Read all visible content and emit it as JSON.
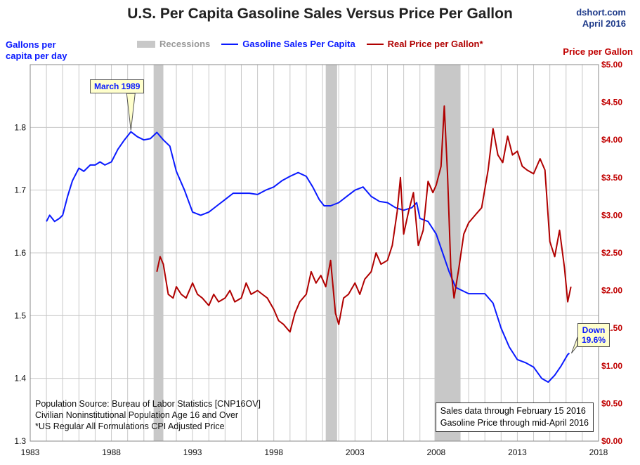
{
  "header": {
    "title": "U.S. Per Capita Gasoline Sales Versus Price Per Gallon",
    "source_line1": "dshort.com",
    "source_line2": "April 2016",
    "left_axis_label_1": "Gallons per",
    "left_axis_label_2": "capita per day",
    "right_axis_label": "Price per Gallon"
  },
  "legend": {
    "recessions": "Recessions",
    "sales": "Gasoline Sales Per Capita",
    "price": "Real Price per Gallon*"
  },
  "notes": {
    "line1": "Population Source: Bureau of Labor Statistics [CNP16OV]",
    "line2": "Civilian Noninstitutional Population  Age 16 and Over",
    "line3": "*US Regular All Formulations CPI Adjusted Price",
    "box_line1": "Sales data through February 15 2016",
    "box_line2": "Gasoline Price through mid-April 2016"
  },
  "callouts": {
    "peak": "March 1989",
    "down_1": "Down",
    "down_2": "19.6%"
  },
  "colors": {
    "sales": "#0a1aff",
    "price": "#b00000",
    "recession": "#c8c8c8",
    "grid": "#c8c8c8"
  },
  "chart_data": {
    "type": "line",
    "title": "U.S. Per Capita Gasoline Sales Versus Price Per Gallon",
    "xlim": [
      1983,
      2018
    ],
    "x_ticks": [
      1983,
      1988,
      1993,
      1998,
      2003,
      2008,
      2013,
      2018
    ],
    "y_left": {
      "label": "Gallons per capita per day",
      "lim": [
        1.3,
        1.9
      ],
      "ticks": [
        1.3,
        1.4,
        1.5,
        1.6,
        1.7,
        1.8
      ]
    },
    "y_right": {
      "label": "Price per Gallon",
      "lim": [
        0,
        5
      ],
      "ticks": [
        "$0.00",
        "$0.50",
        "$1.00",
        "$1.50",
        "$2.00",
        "$2.50",
        "$3.00",
        "$3.50",
        "$4.00",
        "$4.50",
        "$5.00"
      ]
    },
    "grid": true,
    "recessions": [
      [
        1990.6,
        1991.2
      ],
      [
        2001.2,
        2001.9
      ],
      [
        2007.9,
        2009.5
      ]
    ],
    "series": [
      {
        "name": "Gasoline Sales Per Capita",
        "axis": "left",
        "points": [
          [
            1984.0,
            1.65
          ],
          [
            1984.2,
            1.66
          ],
          [
            1984.5,
            1.65
          ],
          [
            1984.8,
            1.655
          ],
          [
            1985.0,
            1.66
          ],
          [
            1985.3,
            1.69
          ],
          [
            1985.6,
            1.715
          ],
          [
            1986.0,
            1.735
          ],
          [
            1986.3,
            1.73
          ],
          [
            1986.7,
            1.74
          ],
          [
            1987.0,
            1.74
          ],
          [
            1987.3,
            1.745
          ],
          [
            1987.6,
            1.74
          ],
          [
            1988.0,
            1.745
          ],
          [
            1988.4,
            1.765
          ],
          [
            1988.8,
            1.78
          ],
          [
            1989.2,
            1.793
          ],
          [
            1989.6,
            1.785
          ],
          [
            1990.0,
            1.78
          ],
          [
            1990.4,
            1.782
          ],
          [
            1990.8,
            1.792
          ],
          [
            1991.2,
            1.78
          ],
          [
            1991.6,
            1.77
          ],
          [
            1992.0,
            1.73
          ],
          [
            1992.5,
            1.7
          ],
          [
            1993.0,
            1.665
          ],
          [
            1993.5,
            1.66
          ],
          [
            1994.0,
            1.665
          ],
          [
            1994.5,
            1.675
          ],
          [
            1995.0,
            1.685
          ],
          [
            1995.5,
            1.695
          ],
          [
            1996.0,
            1.695
          ],
          [
            1996.5,
            1.695
          ],
          [
            1997.0,
            1.693
          ],
          [
            1997.5,
            1.7
          ],
          [
            1998.0,
            1.705
          ],
          [
            1998.5,
            1.715
          ],
          [
            1999.0,
            1.722
          ],
          [
            1999.5,
            1.728
          ],
          [
            2000.0,
            1.722
          ],
          [
            2000.4,
            1.705
          ],
          [
            2000.8,
            1.685
          ],
          [
            2001.1,
            1.675
          ],
          [
            2001.5,
            1.675
          ],
          [
            2002.0,
            1.68
          ],
          [
            2002.5,
            1.69
          ],
          [
            2003.0,
            1.7
          ],
          [
            2003.5,
            1.705
          ],
          [
            2004.0,
            1.69
          ],
          [
            2004.5,
            1.682
          ],
          [
            2005.0,
            1.68
          ],
          [
            2005.5,
            1.672
          ],
          [
            2006.0,
            1.668
          ],
          [
            2006.5,
            1.672
          ],
          [
            2006.8,
            1.68
          ],
          [
            2007.0,
            1.655
          ],
          [
            2007.5,
            1.65
          ],
          [
            2008.0,
            1.63
          ],
          [
            2008.4,
            1.6
          ],
          [
            2008.8,
            1.57
          ],
          [
            2009.2,
            1.545
          ],
          [
            2009.6,
            1.54
          ],
          [
            2010.0,
            1.535
          ],
          [
            2010.5,
            1.535
          ],
          [
            2011.0,
            1.535
          ],
          [
            2011.5,
            1.52
          ],
          [
            2012.0,
            1.48
          ],
          [
            2012.5,
            1.45
          ],
          [
            2013.0,
            1.43
          ],
          [
            2013.5,
            1.425
          ],
          [
            2014.0,
            1.418
          ],
          [
            2014.5,
            1.4
          ],
          [
            2014.9,
            1.394
          ],
          [
            2015.3,
            1.405
          ],
          [
            2015.7,
            1.42
          ],
          [
            2016.1,
            1.438
          ],
          [
            2016.2,
            1.44
          ]
        ]
      },
      {
        "name": "Real Price per Gallon*",
        "axis": "right",
        "points": [
          [
            1990.8,
            2.25
          ],
          [
            1991.0,
            2.45
          ],
          [
            1991.2,
            2.35
          ],
          [
            1991.5,
            1.95
          ],
          [
            1991.8,
            1.9
          ],
          [
            1992.0,
            2.05
          ],
          [
            1992.3,
            1.95
          ],
          [
            1992.6,
            1.9
          ],
          [
            1993.0,
            2.1
          ],
          [
            1993.3,
            1.95
          ],
          [
            1993.6,
            1.9
          ],
          [
            1994.0,
            1.8
          ],
          [
            1994.3,
            1.95
          ],
          [
            1994.6,
            1.85
          ],
          [
            1995.0,
            1.9
          ],
          [
            1995.3,
            2.0
          ],
          [
            1995.6,
            1.85
          ],
          [
            1996.0,
            1.9
          ],
          [
            1996.3,
            2.1
          ],
          [
            1996.6,
            1.95
          ],
          [
            1997.0,
            2.0
          ],
          [
            1997.3,
            1.95
          ],
          [
            1997.6,
            1.9
          ],
          [
            1998.0,
            1.75
          ],
          [
            1998.3,
            1.6
          ],
          [
            1998.6,
            1.55
          ],
          [
            1999.0,
            1.45
          ],
          [
            1999.3,
            1.7
          ],
          [
            1999.6,
            1.85
          ],
          [
            2000.0,
            1.95
          ],
          [
            2000.3,
            2.25
          ],
          [
            2000.6,
            2.1
          ],
          [
            2000.9,
            2.2
          ],
          [
            2001.2,
            2.05
          ],
          [
            2001.5,
            2.4
          ],
          [
            2001.8,
            1.7
          ],
          [
            2002.0,
            1.55
          ],
          [
            2002.3,
            1.9
          ],
          [
            2002.6,
            1.95
          ],
          [
            2003.0,
            2.1
          ],
          [
            2003.3,
            1.95
          ],
          [
            2003.6,
            2.15
          ],
          [
            2004.0,
            2.25
          ],
          [
            2004.3,
            2.5
          ],
          [
            2004.6,
            2.35
          ],
          [
            2005.0,
            2.4
          ],
          [
            2005.3,
            2.6
          ],
          [
            2005.6,
            3.05
          ],
          [
            2005.8,
            3.5
          ],
          [
            2006.0,
            2.75
          ],
          [
            2006.3,
            3.05
          ],
          [
            2006.6,
            3.3
          ],
          [
            2006.9,
            2.6
          ],
          [
            2007.2,
            2.8
          ],
          [
            2007.5,
            3.45
          ],
          [
            2007.8,
            3.3
          ],
          [
            2008.0,
            3.4
          ],
          [
            2008.3,
            3.65
          ],
          [
            2008.5,
            4.45
          ],
          [
            2008.7,
            3.55
          ],
          [
            2008.9,
            2.3
          ],
          [
            2009.1,
            1.9
          ],
          [
            2009.4,
            2.3
          ],
          [
            2009.7,
            2.75
          ],
          [
            2010.0,
            2.9
          ],
          [
            2010.4,
            3.0
          ],
          [
            2010.8,
            3.1
          ],
          [
            2011.2,
            3.6
          ],
          [
            2011.5,
            4.15
          ],
          [
            2011.8,
            3.8
          ],
          [
            2012.1,
            3.7
          ],
          [
            2012.4,
            4.05
          ],
          [
            2012.7,
            3.8
          ],
          [
            2013.0,
            3.85
          ],
          [
            2013.3,
            3.65
          ],
          [
            2013.6,
            3.6
          ],
          [
            2014.0,
            3.55
          ],
          [
            2014.4,
            3.75
          ],
          [
            2014.7,
            3.6
          ],
          [
            2015.0,
            2.65
          ],
          [
            2015.3,
            2.45
          ],
          [
            2015.6,
            2.8
          ],
          [
            2015.9,
            2.3
          ],
          [
            2016.1,
            1.85
          ],
          [
            2016.3,
            2.05
          ]
        ]
      }
    ],
    "annotations": [
      {
        "text": "March 1989",
        "x": 1989.2,
        "y": 1.793,
        "axis": "left"
      },
      {
        "text": "Down 19.6%",
        "x": 2016.2,
        "y": 1.44,
        "axis": "left"
      }
    ]
  }
}
